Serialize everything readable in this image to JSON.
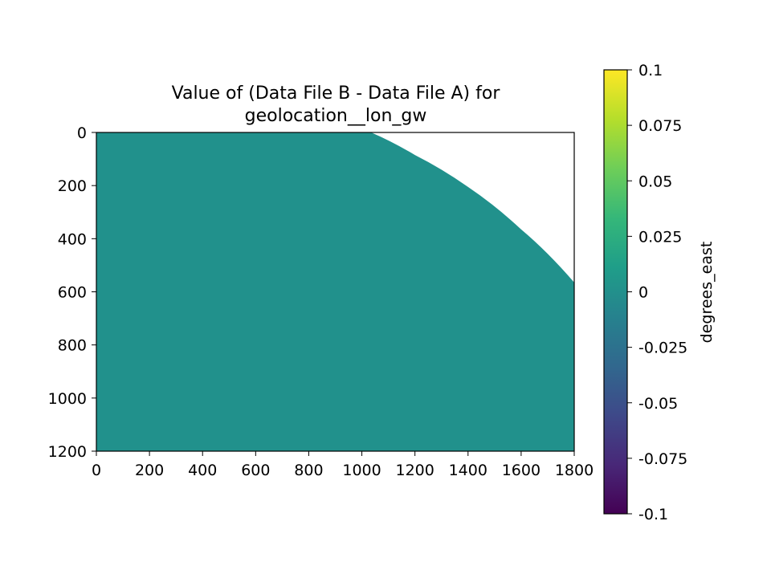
{
  "chart_data": {
    "type": "heatmap",
    "title_lines": [
      "Value of (Data File B - Data File A) for",
      "geolocation__lon_gw"
    ],
    "x": {
      "ticks": [
        0,
        200,
        400,
        600,
        800,
        1000,
        1200,
        1400,
        1600,
        1800
      ],
      "tick_labels": [
        "0",
        "200",
        "400",
        "600",
        "800",
        "1000",
        "1200",
        "1400",
        "1600",
        "1800"
      ],
      "range": [
        0,
        1800
      ]
    },
    "y": {
      "ticks": [
        0,
        200,
        400,
        600,
        800,
        1000,
        1200
      ],
      "tick_labels": [
        "0",
        "200",
        "400",
        "600",
        "800",
        "1000",
        "1200"
      ],
      "range": [
        0,
        1200
      ],
      "inverted": true
    },
    "colorbar": {
      "label": "degrees_east",
      "colormap": "viridis",
      "range": [
        -0.1,
        0.1
      ],
      "ticks": [
        -0.1,
        -0.075,
        -0.05,
        -0.025,
        0,
        0.025,
        0.05,
        0.075,
        0.1
      ],
      "tick_labels": [
        "-0.1",
        "-0.075",
        "-0.05",
        "-0.025",
        "0",
        "0.025",
        "0.05",
        "0.075",
        "0.1"
      ]
    },
    "field": {
      "value": 0,
      "color": "#21918c",
      "missing_color": "#ffffff",
      "valid_region_boundary": [
        [
          1035,
          0
        ],
        [
          1200,
          85
        ],
        [
          1400,
          205
        ],
        [
          1600,
          365
        ],
        [
          1800,
          565
        ]
      ]
    }
  }
}
